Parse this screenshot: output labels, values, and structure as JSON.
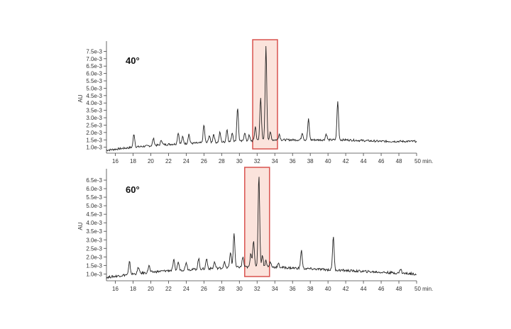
{
  "colors": {
    "trace": "#222222",
    "axis": "#444444",
    "highlight_stroke": "#d9534f",
    "highlight_fill": "#fbe3dc"
  },
  "chart_data": [
    {
      "type": "line",
      "panel_label": "40°",
      "ylabel": "AU",
      "xlabel_unit": "min.",
      "xlim": [
        15,
        50
      ],
      "ylim": [
        0.0006,
        0.008
      ],
      "x_ticks": [
        16,
        18,
        20,
        22,
        24,
        26,
        28,
        30,
        32,
        34,
        36,
        38,
        40,
        42,
        44,
        46,
        48,
        50
      ],
      "x_tick_labels": [
        "16",
        "18",
        "20",
        "22",
        "24",
        "26",
        "28",
        "30",
        "32",
        "34",
        "36",
        "38",
        "40",
        "42",
        "44",
        "46",
        "48",
        "50 min."
      ],
      "y_ticks": [
        0.001,
        0.0015,
        0.002,
        0.0025,
        0.003,
        0.0035,
        0.004,
        0.0045,
        0.005,
        0.0055,
        0.006,
        0.0065,
        0.007,
        0.0075
      ],
      "y_tick_labels": [
        "1.0e-3",
        "1.5e-3",
        "2.0e-3",
        "2.5e-3",
        "3.0e-3",
        "3.5e-3",
        "4.0e-3",
        "4.5e-3",
        "5.0e-3",
        "5.5e-3",
        "6.0e-3",
        "6.5e-3",
        "7.0e-3",
        "7.5e-3"
      ],
      "highlight_range": [
        31.5,
        34.3
      ],
      "baseline": [
        [
          15,
          0.0008
        ],
        [
          18,
          0.001
        ],
        [
          22,
          0.0012
        ],
        [
          26,
          0.0013
        ],
        [
          30,
          0.0014
        ],
        [
          34,
          0.0015
        ],
        [
          38,
          0.0015
        ],
        [
          42,
          0.0015
        ],
        [
          46,
          0.0014
        ],
        [
          50,
          0.0014
        ]
      ],
      "peaks": [
        [
          18.1,
          0.0019
        ],
        [
          20.3,
          0.0016
        ],
        [
          21.2,
          0.0015
        ],
        [
          23.1,
          0.002
        ],
        [
          23.6,
          0.0017
        ],
        [
          24.3,
          0.0019
        ],
        [
          26.0,
          0.0025
        ],
        [
          26.6,
          0.0018
        ],
        [
          27.1,
          0.0019
        ],
        [
          27.8,
          0.002
        ],
        [
          28.6,
          0.0022
        ],
        [
          29.2,
          0.002
        ],
        [
          29.8,
          0.0037
        ],
        [
          30.6,
          0.002
        ],
        [
          31.1,
          0.0018
        ],
        [
          31.8,
          0.0024
        ],
        [
          32.4,
          0.0044
        ],
        [
          33.0,
          0.0078
        ],
        [
          33.5,
          0.002
        ],
        [
          34.5,
          0.0019
        ],
        [
          37.1,
          0.002
        ],
        [
          37.8,
          0.0029
        ],
        [
          39.8,
          0.0019
        ],
        [
          41.1,
          0.0041
        ]
      ]
    },
    {
      "type": "line",
      "panel_label": "60°",
      "ylabel": "AU",
      "xlabel_unit": "min.",
      "xlim": [
        15,
        50
      ],
      "ylim": [
        0.0006,
        0.007
      ],
      "x_ticks": [
        16,
        18,
        20,
        22,
        24,
        26,
        28,
        30,
        32,
        34,
        36,
        38,
        40,
        42,
        44,
        46,
        48,
        50
      ],
      "x_tick_labels": [
        "16",
        "18",
        "20",
        "22",
        "24",
        "26",
        "28",
        "30",
        "32",
        "34",
        "36",
        "38",
        "40",
        "42",
        "44",
        "46",
        "48",
        "50 min."
      ],
      "y_ticks": [
        0.001,
        0.0015,
        0.002,
        0.0025,
        0.003,
        0.0035,
        0.004,
        0.0045,
        0.005,
        0.0055,
        0.006,
        0.0065
      ],
      "y_tick_labels": [
        "1.0e-3",
        "1.5e-3",
        "2.0e-3",
        "2.5e-3",
        "3.0e-3",
        "3.5e-3",
        "4.0e-3",
        "4.5e-3",
        "5.0e-3",
        "5.5e-3",
        "6.0e-3",
        "6.5e-3"
      ],
      "highlight_range": [
        30.6,
        33.4
      ],
      "baseline": [
        [
          15,
          0.0008
        ],
        [
          18,
          0.001
        ],
        [
          22,
          0.0012
        ],
        [
          26,
          0.0013
        ],
        [
          30,
          0.0014
        ],
        [
          34,
          0.0014
        ],
        [
          38,
          0.0013
        ],
        [
          42,
          0.0012
        ],
        [
          46,
          0.0011
        ],
        [
          50,
          0.001
        ]
      ],
      "peaks": [
        [
          17.6,
          0.0017
        ],
        [
          18.6,
          0.0014
        ],
        [
          19.8,
          0.0015
        ],
        [
          22.6,
          0.0018
        ],
        [
          23.1,
          0.0017
        ],
        [
          24.0,
          0.0017
        ],
        [
          25.4,
          0.0019
        ],
        [
          26.3,
          0.0019
        ],
        [
          27.2,
          0.0017
        ],
        [
          28.3,
          0.0017
        ],
        [
          29.0,
          0.0023
        ],
        [
          29.4,
          0.0034
        ],
        [
          30.4,
          0.002
        ],
        [
          31.3,
          0.0022
        ],
        [
          31.6,
          0.003
        ],
        [
          32.2,
          0.0068
        ],
        [
          32.6,
          0.0021
        ],
        [
          33.0,
          0.0018
        ],
        [
          33.5,
          0.0017
        ],
        [
          34.4,
          0.0016
        ],
        [
          37.0,
          0.0024
        ],
        [
          40.6,
          0.0032
        ],
        [
          48.2,
          0.0013
        ]
      ]
    }
  ]
}
